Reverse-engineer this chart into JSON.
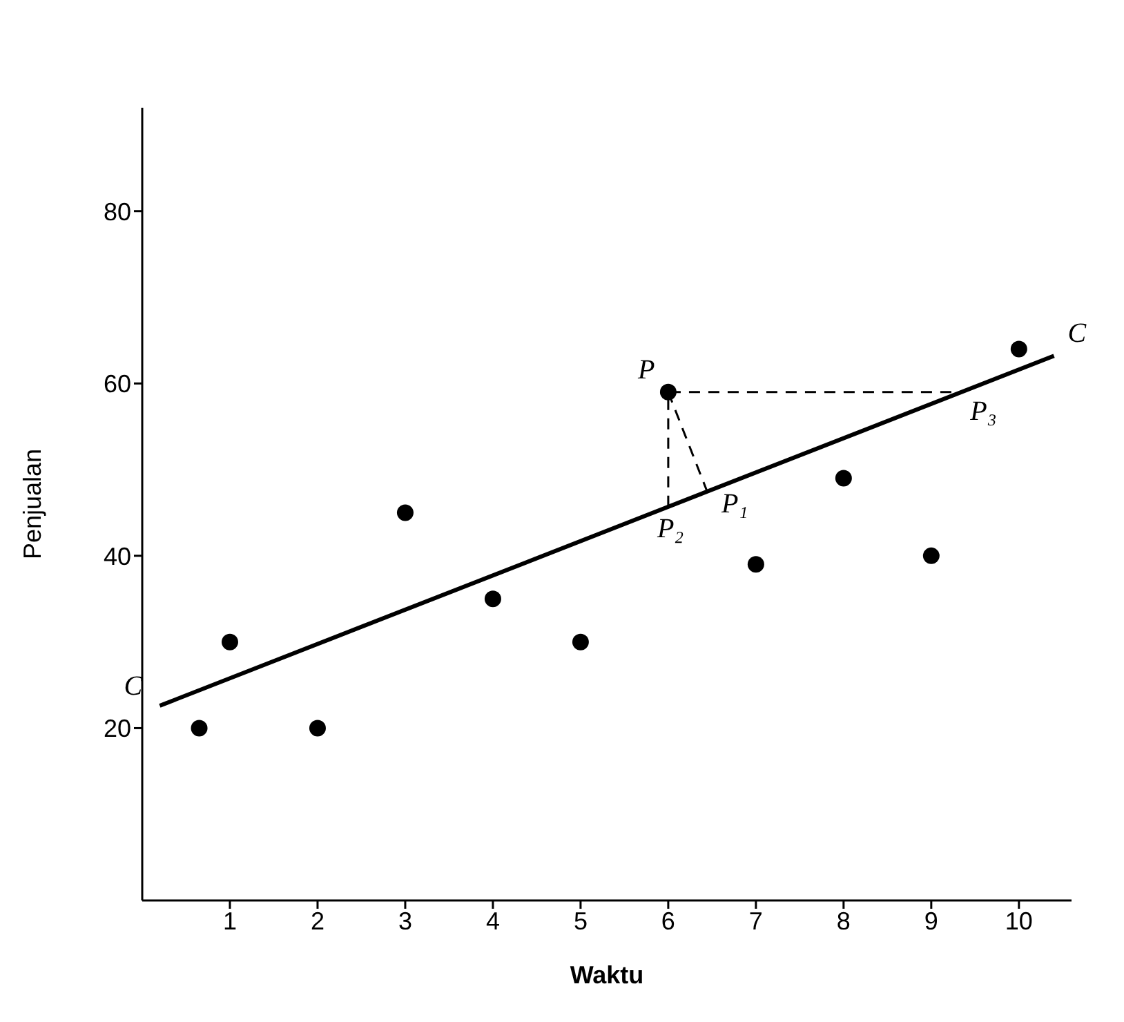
{
  "chart_data": {
    "type": "scatter",
    "xlabel": "Waktu",
    "ylabel": "Penjualan",
    "xlim": [
      0,
      10.6
    ],
    "xticks": [
      1,
      2,
      3,
      4,
      5,
      6,
      7,
      8,
      9,
      10
    ],
    "ylim": [
      0,
      92
    ],
    "yticks": [
      20,
      40,
      60,
      80
    ],
    "grid": false,
    "legend": false,
    "marker": "circle",
    "series": [
      {
        "color": "#000000",
        "x": [
          0.65,
          1,
          2,
          3,
          4,
          5,
          6,
          7,
          8,
          9,
          10
        ],
        "values": [
          20,
          30,
          20,
          45,
          35,
          30,
          59,
          39,
          49,
          40,
          64
        ]
      },
      {
        "type": "line",
        "color": "#000000",
        "marker": "none",
        "line_style": "solid",
        "x": [
          0.2,
          10.4
        ],
        "values": [
          22.6,
          63.2
        ]
      },
      {
        "type": "line",
        "color": "#000000",
        "marker": "none",
        "line_style": "dashed",
        "x": [
          6,
          6,
          9.35
        ],
        "values": [
          45.7,
          59,
          59
        ]
      },
      {
        "type": "line",
        "color": "#000000",
        "marker": "none",
        "line_style": "dashed",
        "x": [
          6,
          6.45
        ],
        "values": [
          59,
          47.3
        ]
      }
    ],
    "annotations": [
      {
        "text": "C",
        "x": 0.2,
        "y": 22.6
      },
      {
        "text": "C",
        "x": 10.4,
        "y": 63.2
      },
      {
        "text": "P",
        "x": 6,
        "y": 59
      },
      {
        "text": "P₁",
        "x": 6.45,
        "y": 47.3
      },
      {
        "text": "P₂",
        "x": 6,
        "y": 45.7
      },
      {
        "text": "P₃",
        "x": 9.35,
        "y": 59
      }
    ]
  }
}
